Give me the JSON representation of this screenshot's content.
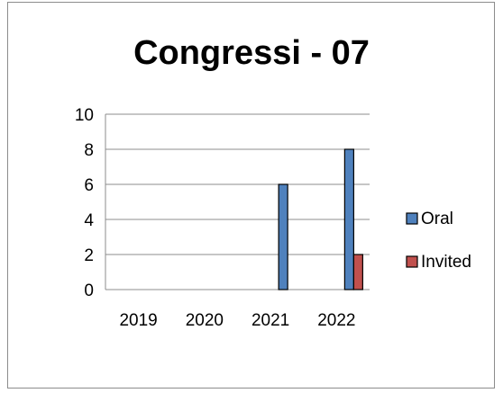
{
  "chart_data": {
    "type": "bar",
    "title": "Congressi - 07",
    "xlabel": "",
    "ylabel": "",
    "categories": [
      "2019",
      "2020",
      "2021",
      "2022"
    ],
    "series": [
      {
        "name": "Oral",
        "values": [
          0,
          0,
          6,
          8
        ],
        "color": "#4f81bd"
      },
      {
        "name": "Invited",
        "values": [
          0,
          0,
          0,
          2
        ],
        "color": "#c0504d"
      }
    ],
    "ylim": [
      0,
      10
    ],
    "yticks": [
      "0",
      "2",
      "4",
      "6",
      "8",
      "10"
    ],
    "grid": true,
    "legend_position": "right"
  }
}
